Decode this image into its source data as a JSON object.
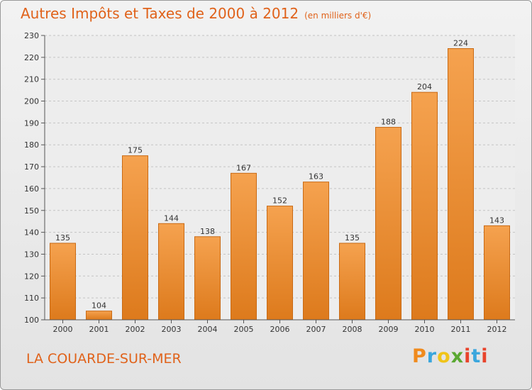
{
  "header": {
    "title": "Autres Impôts et Taxes de 2000 à 2012",
    "unit": "(en milliers d'€)"
  },
  "footer": {
    "commune": "LA COUARDE-SUR-MER",
    "brand": "Proxiti",
    "brand_colors": [
      "#f08a1c",
      "#3aa6dd",
      "#f0c419",
      "#5aa832",
      "#e8432b",
      "#3aa6dd",
      "#e8432b"
    ]
  },
  "chart_data": {
    "type": "bar",
    "title": "Autres Impôts et Taxes de 2000 à 2012",
    "subtitle": "(en milliers d'€)",
    "xlabel": "",
    "ylabel": "",
    "categories": [
      "2000",
      "2001",
      "2002",
      "2003",
      "2004",
      "2005",
      "2006",
      "2007",
      "2008",
      "2009",
      "2010",
      "2011",
      "2012"
    ],
    "values": [
      135,
      104,
      175,
      144,
      138,
      167,
      152,
      163,
      135,
      188,
      204,
      224,
      143
    ],
    "ylim": [
      100,
      230
    ],
    "yticks": [
      100,
      110,
      120,
      130,
      140,
      150,
      160,
      170,
      180,
      190,
      200,
      210,
      220,
      230
    ],
    "grid": true,
    "bar_color_top": "#f5a24f",
    "bar_color_bottom": "#dd7a1c",
    "bar_edge_color": "#c96a14"
  }
}
